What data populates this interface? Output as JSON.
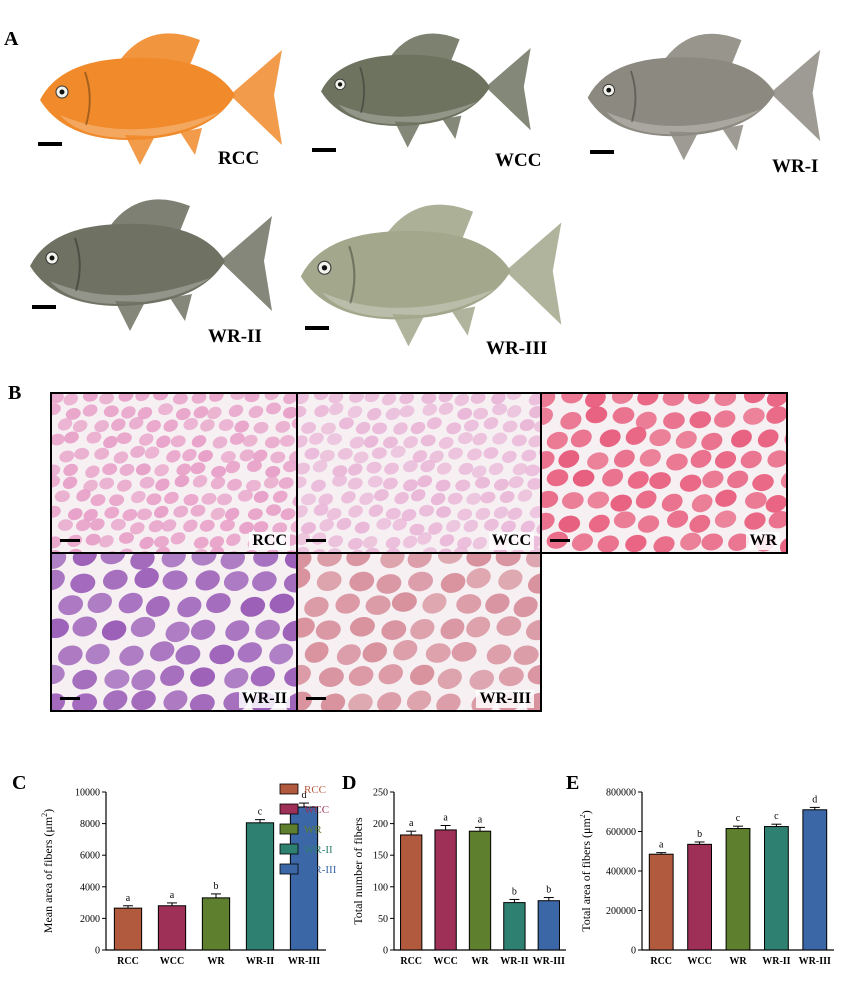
{
  "panels": {
    "A": "A",
    "B": "B",
    "C": "C",
    "D": "D",
    "E": "E"
  },
  "fish": [
    {
      "label": "RCC",
      "color": "#f08a2a"
    },
    {
      "label": "WCC",
      "color": "#6e7360"
    },
    {
      "label": "WR-I",
      "color": "#8c8a80"
    },
    {
      "label": "WR-II",
      "color": "#6f7263"
    },
    {
      "label": "WR-III",
      "color": "#a3a78c"
    }
  ],
  "histology": [
    {
      "label": "RCC",
      "color": "#e8a2c9"
    },
    {
      "label": "WCC",
      "color": "#eab8d8"
    },
    {
      "label": "WR",
      "color": "#e8607f"
    },
    {
      "label": "WR-II",
      "color": "#9c60b8"
    },
    {
      "label": "WR-III",
      "color": "#d8929e"
    }
  ],
  "legend": [
    {
      "label": "RCC",
      "color": "#b25a3e"
    },
    {
      "label": "WCC",
      "color": "#9e3057"
    },
    {
      "label": "WR",
      "color": "#5e7f2e"
    },
    {
      "label": "WR-II",
      "color": "#2e8070"
    },
    {
      "label": "WR-III",
      "color": "#3c67a6"
    }
  ],
  "chart_data": [
    {
      "type": "bar",
      "panel": "C",
      "categories": [
        "RCC",
        "WCC",
        "WR",
        "WR-II",
        "WR-III"
      ],
      "values": [
        2650,
        2800,
        3300,
        8050,
        9050
      ],
      "errors": [
        150,
        180,
        250,
        200,
        250
      ],
      "significance": [
        "a",
        "a",
        "b",
        "c",
        "d"
      ],
      "ylabel": "Mean area of fibers (μm²)",
      "ylim": [
        0,
        10000
      ],
      "yticks": [
        "0",
        "2000",
        "4000",
        "6000",
        "8000",
        "10000"
      ],
      "legend": "top-right"
    },
    {
      "type": "bar",
      "panel": "D",
      "categories": [
        "RCC",
        "WCC",
        "WR",
        "WR-II",
        "WR-III"
      ],
      "values": [
        182,
        190,
        188,
        75,
        78
      ],
      "errors": [
        6,
        7,
        6,
        5,
        5
      ],
      "significance": [
        "a",
        "a",
        "a",
        "b",
        "b"
      ],
      "ylabel": "Total number of fibers",
      "ylim": [
        0,
        250
      ],
      "yticks": [
        "0",
        "50",
        "100",
        "150",
        "200",
        "250"
      ]
    },
    {
      "type": "bar",
      "panel": "E",
      "categories": [
        "RCC",
        "WCC",
        "WR",
        "WR-II",
        "WR-III"
      ],
      "values": [
        485000,
        535000,
        615000,
        625000,
        710000
      ],
      "errors": [
        8000,
        12000,
        12000,
        12000,
        12000
      ],
      "significance": [
        "a",
        "b",
        "c",
        "c",
        "d"
      ],
      "ylabel": "Total area of fibers (μm²)",
      "ylim": [
        0,
        800000
      ],
      "yticks": [
        "0",
        "200000",
        "400000",
        "600000",
        "800000"
      ]
    }
  ]
}
